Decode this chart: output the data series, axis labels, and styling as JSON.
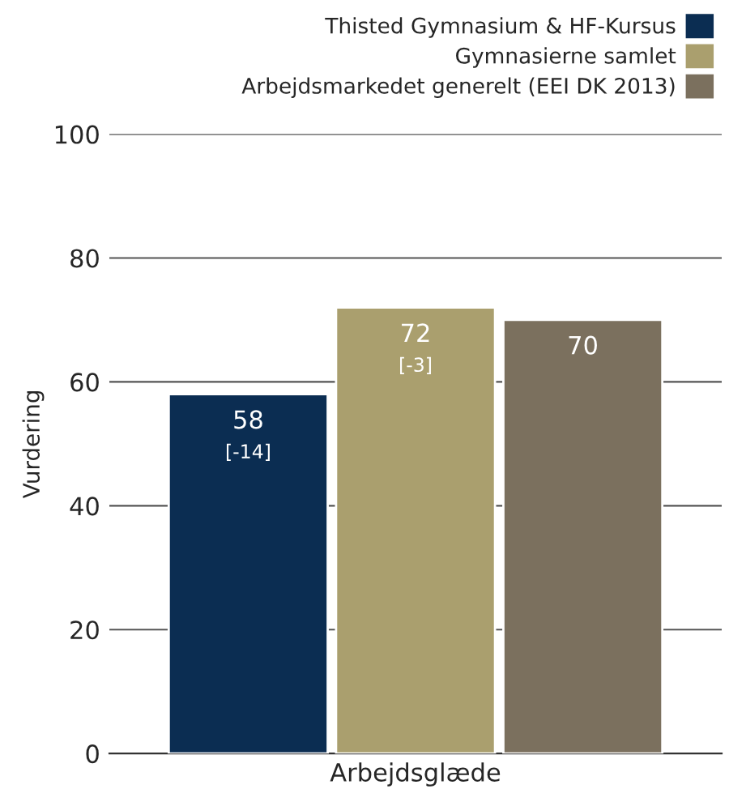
{
  "chart_data": {
    "type": "bar",
    "categories": [
      "Arbejdsglæde"
    ],
    "ylabel": "Vurdering",
    "series": [
      {
        "name": "Thisted Gymnasium & HF-Kursus",
        "color": "#0b2d52",
        "values": [
          58
        ],
        "value_labels": [
          "58\n[-14]"
        ]
      },
      {
        "name": "Gymnasierne samlet",
        "color": "#aa9f6e",
        "values": [
          72
        ],
        "value_labels": [
          "72\n[-3]"
        ]
      },
      {
        "name": "Arbejdsmarkedet generelt (EEI DK 2013)",
        "color": "#7b705e",
        "values": [
          70
        ],
        "value_labels": [
          "70"
        ]
      }
    ],
    "ylim": [
      0,
      100
    ],
    "yticks": [
      0,
      20,
      40,
      60,
      80,
      100
    ],
    "grid": "y",
    "legend": "top right"
  }
}
